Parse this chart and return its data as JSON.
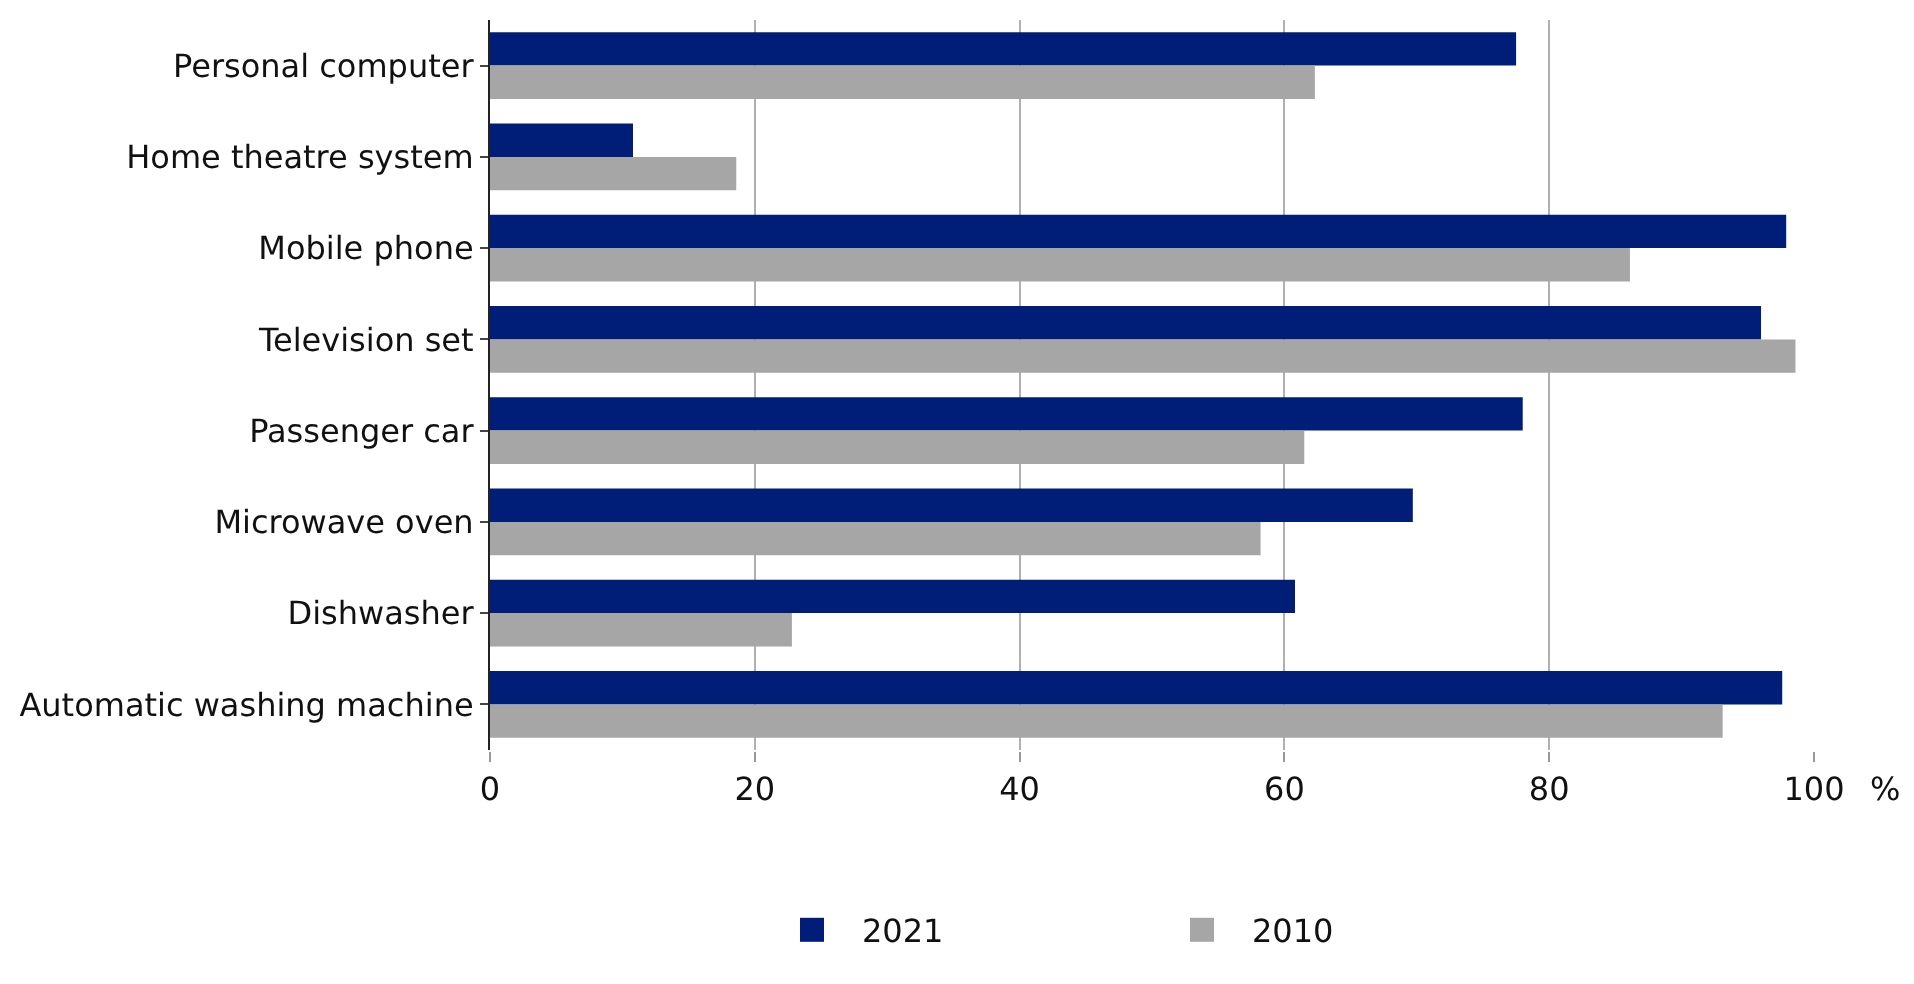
{
  "chart_data": {
    "type": "bar",
    "orientation": "horizontal",
    "xlabel": "%",
    "categories": [
      "Personal computer",
      "Home theatre system",
      "Mobile phone",
      "Television set",
      "Passenger car",
      "Microwave oven",
      "Dishwasher",
      "Automatic washing machine"
    ],
    "series": [
      {
        "name": "2021",
        "color": "#001e78",
        "values": [
          77.5,
          10.8,
          97.9,
          96.0,
          78.0,
          69.7,
          60.8,
          97.6
        ]
      },
      {
        "name": "2010",
        "color": "#a6a6a6",
        "values": [
          62.3,
          18.6,
          86.1,
          98.6,
          61.5,
          58.2,
          22.8,
          93.1
        ]
      }
    ],
    "xlim": [
      0,
      100
    ],
    "xticks": [
      0,
      20,
      40,
      60,
      80,
      100
    ],
    "grid": "x",
    "legend": "bottom"
  }
}
